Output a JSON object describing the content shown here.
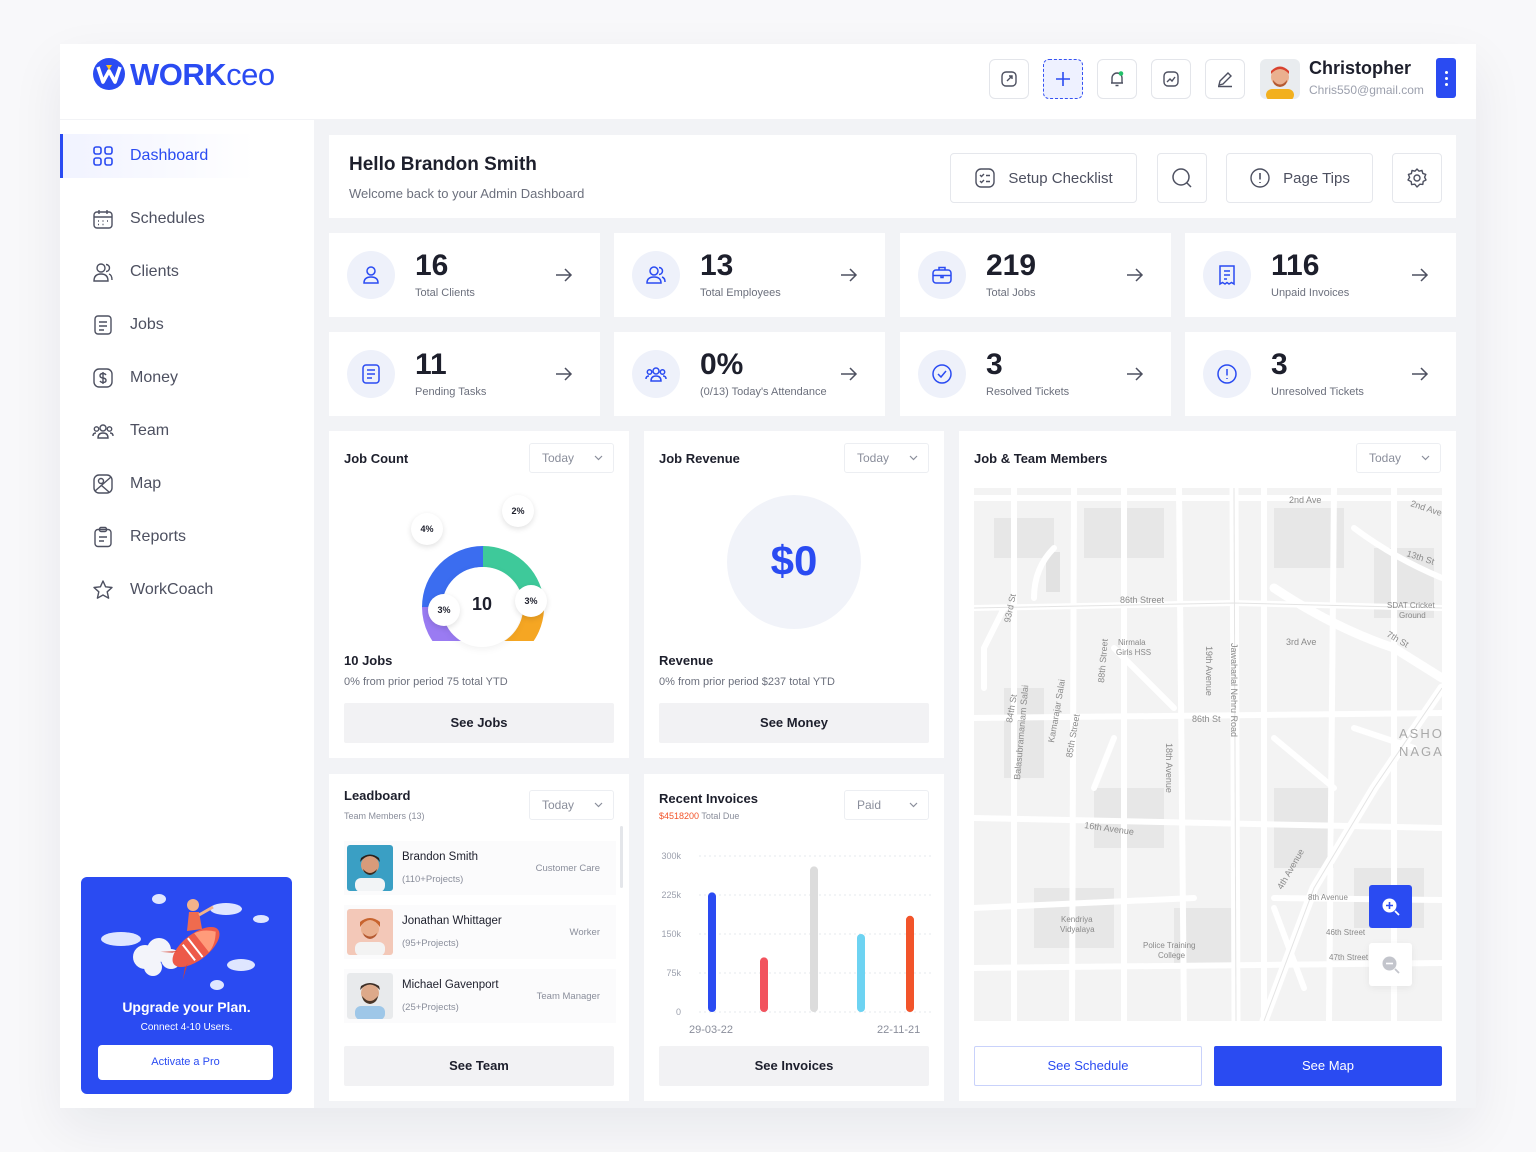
{
  "brand": {
    "bold": "WORK",
    "light": "ceo"
  },
  "user": {
    "name": "Christopher",
    "email": "Chris550@gmail.com"
  },
  "topbar_icons": [
    "expand-icon",
    "plus-icon",
    "bell-icon",
    "chart-icon",
    "edit-icon"
  ],
  "nav": [
    {
      "label": "Dashboard",
      "icon": "grid-icon",
      "active": true
    },
    {
      "label": "Schedules",
      "icon": "calendar-icon"
    },
    {
      "label": "Clients",
      "icon": "users-icon"
    },
    {
      "label": "Jobs",
      "icon": "document-icon"
    },
    {
      "label": "Money",
      "icon": "dollar-icon"
    },
    {
      "label": "Team",
      "icon": "team-icon"
    },
    {
      "label": "Map",
      "icon": "map-icon"
    },
    {
      "label": "Reports",
      "icon": "clipboard-icon"
    },
    {
      "label": "WorkCoach",
      "icon": "star-icon"
    }
  ],
  "promo": {
    "title": "Upgrade your Plan.",
    "subtitle": "Connect 4-10 Users.",
    "button": "Activate a Pro"
  },
  "welcome": {
    "title": "Hello Brandon Smith",
    "subtitle": "Welcome back to your Admin Dashboard"
  },
  "header_buttons": {
    "setup": "Setup Checklist",
    "tips": "Page Tips"
  },
  "stats": [
    {
      "value": "16",
      "label": "Total Clients",
      "icon": "user-icon"
    },
    {
      "value": "13",
      "label": "Total Employees",
      "icon": "users-icon"
    },
    {
      "value": "219",
      "label": "Total Jobs",
      "icon": "briefcase-icon"
    },
    {
      "value": "116",
      "label": "Unpaid Invoices",
      "icon": "invoice-icon"
    },
    {
      "value": "11",
      "label": "Pending Tasks",
      "icon": "tasks-icon"
    },
    {
      "value": "0%",
      "label": "(0/13) Today's Attendance",
      "icon": "attendance-icon"
    },
    {
      "value": "3",
      "label": "Resolved Tickets",
      "icon": "check-icon"
    },
    {
      "value": "3",
      "label": "Unresolved Tickets",
      "icon": "alert-icon"
    }
  ],
  "job_count": {
    "title": "Job Count",
    "filter": "Today",
    "center": "10",
    "metric": "10 Jobs",
    "sub": "0% from prior period 75 total YTD",
    "button": "See Jobs",
    "labels": [
      "4%",
      "2%",
      "3%",
      "3%"
    ]
  },
  "job_revenue": {
    "title": "Job Revenue",
    "filter": "Today",
    "amount": "$0",
    "metric": "Revenue",
    "sub": "0% from prior period $237 total YTD",
    "button": "See Money"
  },
  "map_card": {
    "title": "Job & Team Members",
    "filter": "Today",
    "btn_schedule": "See Schedule",
    "btn_map": "See Map",
    "labels": {
      "l1": "2nd Ave",
      "l2": "2nd Ave",
      "l3": "13th St",
      "l4": "86th Street",
      "l5": "SDAT Cricket",
      "l6": "Ground",
      "l7": "93rd St",
      "l8": "Nirmala",
      "l9": "Girls HSS",
      "l10": "3rd Ave",
      "l11": "7th St",
      "l12": "88th Street",
      "l13": "19th Avenue",
      "l14": "Jawaharlal Nehru Road",
      "l15": "84th St",
      "l16": "Kamarajar Salai",
      "l17": "86th St",
      "l18": "85th Street",
      "l19": "Balasubramaniam Salai",
      "l20": "18th Avenue",
      "l21": "ASHO",
      "l22": "NAGA",
      "l23": "16th Avenue",
      "l24": "4th Avenue",
      "l25": "8th Avenue",
      "l26": "Kendriya",
      "l27": "Vidyalaya",
      "l28": "Police Training",
      "l29": "College",
      "l30": "46th Street",
      "l31": "47th Street"
    }
  },
  "leaderboard": {
    "title": "Leadboard",
    "subtitle": "Team Members (13)",
    "filter": "Today",
    "button": "See Team",
    "rows": [
      {
        "name": "Brandon Smith",
        "projects": "(110+Projects)",
        "role": "Customer Care"
      },
      {
        "name": "Jonathan Whittager",
        "projects": "(95+Projects)",
        "role": "Worker"
      },
      {
        "name": "Michael Gavenport",
        "projects": "(25+Projects)",
        "role": "Team Manager"
      }
    ]
  },
  "invoices": {
    "title": "Recent Invoices",
    "due_amount": "$4518200",
    "due_label": "Total Due",
    "filter": "Paid",
    "button": "See Invoices"
  },
  "chart_data": {
    "type": "bar",
    "title": "",
    "ylim": [
      0,
      300000
    ],
    "y_ticks": [
      "300k",
      "225k",
      "150k",
      "75k",
      "0"
    ],
    "x_labels": [
      "29-03-22",
      "22-11-21"
    ],
    "values": [
      230000,
      105000,
      280000,
      150000,
      185000
    ],
    "colors": [
      "#2a4bf2",
      "#f2535e",
      "#dcdcdc",
      "#6dd3f2",
      "#f2542a"
    ]
  }
}
